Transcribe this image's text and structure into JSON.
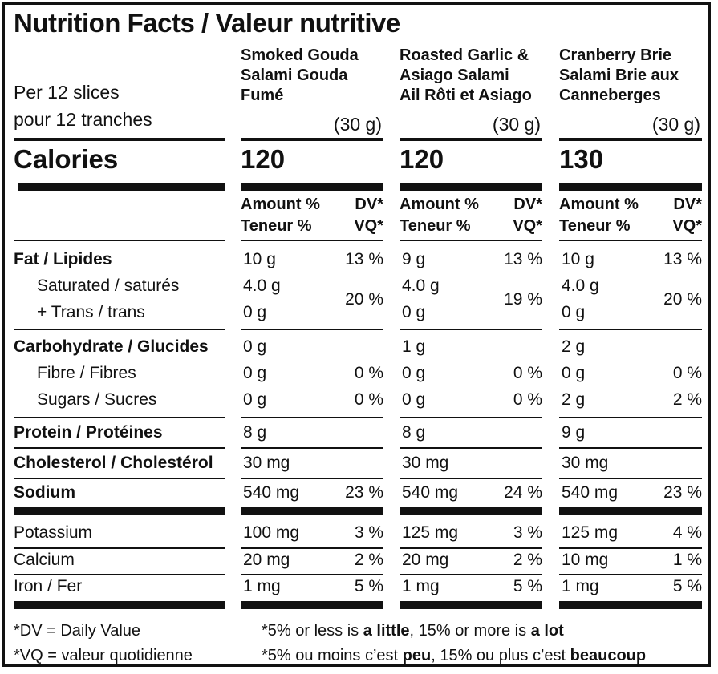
{
  "title": "Nutrition Facts / Valeur nutritive",
  "per_line1": "Per 12 slices",
  "per_line2": "pour 12 tranches",
  "calories_label": "Calories",
  "header": {
    "amount_line1": "Amount %",
    "amount_line2": "Teneur %",
    "dv_line1": "DV*",
    "dv_line2": "VQ*"
  },
  "products": [
    {
      "name": [
        "Smoked Gouda",
        "Salami Gouda",
        "Fumé"
      ],
      "serving": "(30 g)",
      "calories": "120",
      "fat": "10 g",
      "fat_dv": "13 %",
      "sat": "4.0 g",
      "trans": "0 g",
      "sat_trans_dv": "20 %",
      "carb": "0 g",
      "fibre": "0 g",
      "fibre_dv": "0 %",
      "sugars": "0 g",
      "sugars_dv": "0 %",
      "protein": "8 g",
      "cholesterol": "30 mg",
      "sodium": "540 mg",
      "sodium_dv": "23 %",
      "potassium": "100 mg",
      "potassium_dv": "3 %",
      "calcium": "20 mg",
      "calcium_dv": "2 %",
      "iron": "1 mg",
      "iron_dv": "5 %"
    },
    {
      "name": [
        "Roasted Garlic &",
        "Asiago Salami",
        "Ail Rôti et Asiago"
      ],
      "serving": "(30 g)",
      "calories": "120",
      "fat": "9 g",
      "fat_dv": "13 %",
      "sat": "4.0 g",
      "trans": "0 g",
      "sat_trans_dv": "19 %",
      "carb": "1 g",
      "fibre": "0 g",
      "fibre_dv": "0 %",
      "sugars": "0 g",
      "sugars_dv": "0 %",
      "protein": "8 g",
      "cholesterol": "30 mg",
      "sodium": "540 mg",
      "sodium_dv": "24 %",
      "potassium": "125 mg",
      "potassium_dv": "3 %",
      "calcium": "20 mg",
      "calcium_dv": "2 %",
      "iron": "1 mg",
      "iron_dv": "5 %"
    },
    {
      "name": [
        "Cranberry Brie",
        "Salami Brie aux",
        "Canneberges"
      ],
      "serving": "(30 g)",
      "calories": "130",
      "fat": "10 g",
      "fat_dv": "13 %",
      "sat": "4.0 g",
      "trans": "0 g",
      "sat_trans_dv": "20 %",
      "carb": "2 g",
      "fibre": "0 g",
      "fibre_dv": "0 %",
      "sugars": "2 g",
      "sugars_dv": "2 %",
      "protein": "9 g",
      "cholesterol": "30 mg",
      "sodium": "540 mg",
      "sodium_dv": "23 %",
      "potassium": "125 mg",
      "potassium_dv": "4 %",
      "calcium": "10 mg",
      "calcium_dv": "1 %",
      "iron": "1 mg",
      "iron_dv": "5 %"
    }
  ],
  "labels": {
    "fat": "Fat / Lipides",
    "sat": "Saturated / saturés",
    "trans": "+ Trans / trans",
    "carb": "Carbohydrate / Glucides",
    "fibre": "Fibre / Fibres",
    "sugars": "Sugars / Sucres",
    "protein": "Protein / Protéines",
    "cholesterol": "Cholesterol / Cholestérol",
    "sodium": "Sodium",
    "potassium": "Potassium",
    "calcium": "Calcium",
    "iron": "Iron / Fer"
  },
  "footer": {
    "dv_def": "*DV = Daily Value",
    "vq_def": "*VQ = valeur quotidienne",
    "en_pre": "*5% or less is ",
    "en_little": "a little",
    "en_mid": ", 15% or more is ",
    "en_lot": "a lot",
    "fr_pre": "*5% ou moins c’est ",
    "fr_peu": "peu",
    "fr_mid": ", 15% ou plus c’est ",
    "fr_beaucoup": "beaucoup"
  }
}
